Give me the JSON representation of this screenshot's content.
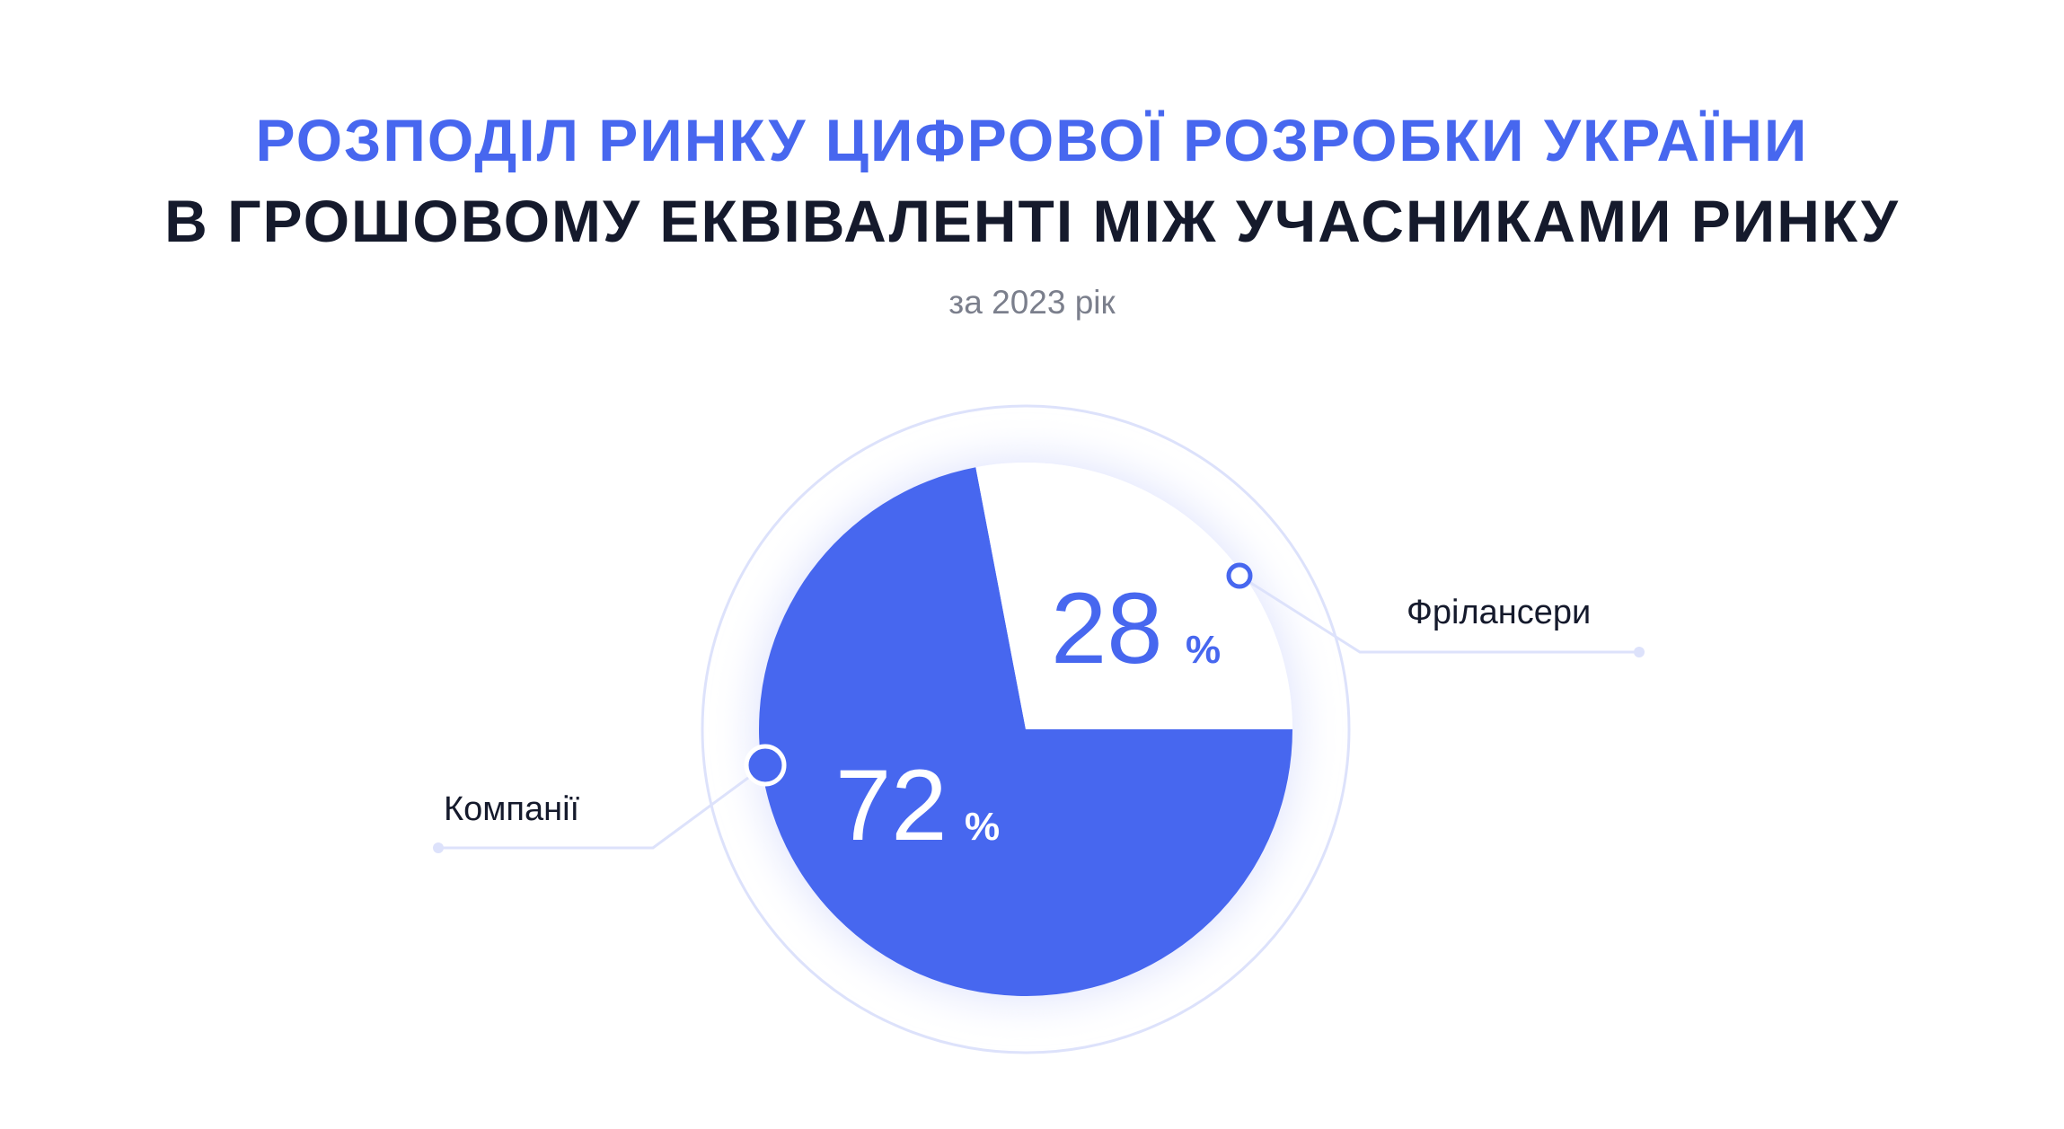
{
  "title_line1": "РОЗПОДІЛ РИНКУ ЦИФРОВОЇ РОЗРОБКИ УКРАЇНИ",
  "title_line2": "В ГРОШОВОМУ ЕКВІВАЛЕНТІ МІЖ УЧАСНИКАМИ РИНКУ",
  "subtitle": "за 2023 рік",
  "colors": {
    "accent": "#4767ef",
    "dark": "#151a2c",
    "muted": "#7b7f8c",
    "line": "#dde2fb"
  },
  "chart_data": {
    "type": "pie",
    "title": "Розподіл ринку цифрової розробки України в грошовому еквіваленті між учасниками ринку",
    "subtitle": "за 2023 рік",
    "slices": [
      {
        "label": "Фрілансери",
        "value": 28,
        "display": "28",
        "unit": "%",
        "color": "#ffffff"
      },
      {
        "label": "Компанії",
        "value": 72,
        "display": "72",
        "unit": "%",
        "color": "#4767ef"
      }
    ]
  }
}
